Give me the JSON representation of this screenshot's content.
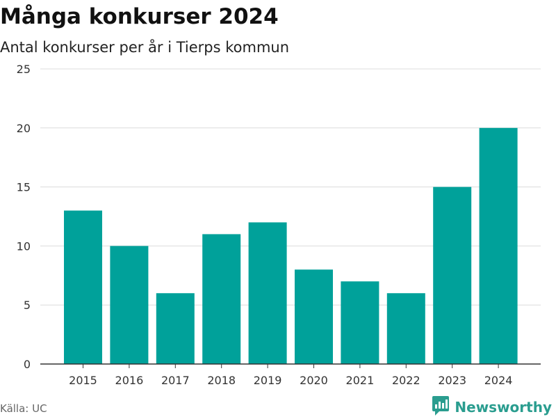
{
  "chart_data": {
    "type": "bar",
    "title": "Många konkurser 2024",
    "subtitle": "Antal konkurser per år i Tierps kommun",
    "categories": [
      "2015",
      "2016",
      "2017",
      "2018",
      "2019",
      "2020",
      "2021",
      "2022",
      "2023",
      "2024"
    ],
    "values": [
      13,
      10,
      6,
      11,
      12,
      8,
      7,
      6,
      15,
      20
    ],
    "ylim": [
      0,
      25
    ],
    "yticks": [
      0,
      5,
      10,
      15,
      20,
      25
    ],
    "xlabel": "",
    "ylabel": "",
    "grid": true,
    "bar_color": "#00a19a"
  },
  "footer": {
    "source": "Källa: UC",
    "brand": "Newsworthy",
    "brand_color": "#2a9d8f",
    "brand_icon": "bar-chart-pin-icon"
  }
}
